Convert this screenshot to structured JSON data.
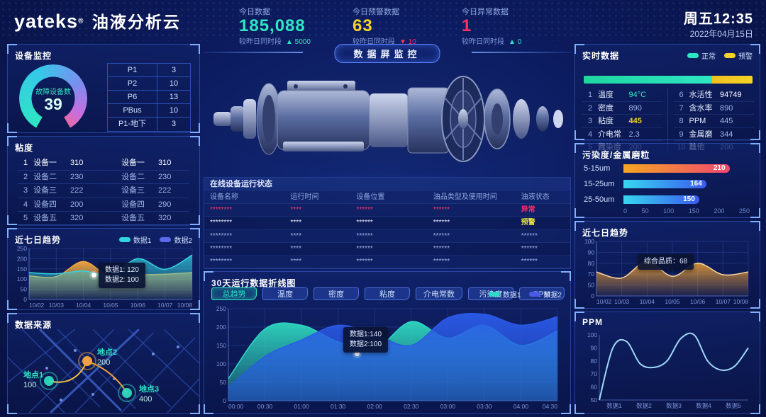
{
  "colors": {
    "teal": "#2EE6C3",
    "yellow": "#F5D324",
    "red": "#FF2E63",
    "cyan": "#35C9E8",
    "orange": "#F5A93C",
    "blue": "#2A5AE8"
  },
  "header": {
    "logo_en": "yateks",
    "logo_reg": "®",
    "logo_cn": "油液分析云",
    "stats": [
      {
        "label": "今日数据",
        "value": "185,088",
        "delta_label": "较昨日同时段",
        "delta": "▲ 5000"
      },
      {
        "label": "今日预警数据",
        "value": "63",
        "delta_label": "较昨日同时段",
        "delta": "▼ 10"
      },
      {
        "label": "今日异常数据",
        "value": "1",
        "delta_label": "较昨日同时段",
        "delta": "▲ 0"
      }
    ],
    "weekday_time": "周五12:35",
    "date": "2022年04月15日"
  },
  "device_monitor": {
    "title": "设备监控",
    "gauge_label": "故障设备数",
    "gauge_value": "39",
    "rows": [
      {
        "k": "P1",
        "v": "3"
      },
      {
        "k": "P2",
        "v": "10"
      },
      {
        "k": "P6",
        "v": "13"
      },
      {
        "k": "PBus",
        "v": "10"
      },
      {
        "k": "P1-地下",
        "v": "3"
      }
    ]
  },
  "viscosity": {
    "title": "粘度",
    "rows": [
      {
        "no": "1",
        "lname": "设备一",
        "lval": "310",
        "rname": "设备一",
        "rval": "310"
      },
      {
        "no": "2",
        "lname": "设备二",
        "lval": "230",
        "rname": "设备二",
        "rval": "230"
      },
      {
        "no": "3",
        "lname": "设备三",
        "lval": "222",
        "rname": "设备三",
        "rval": "222"
      },
      {
        "no": "4",
        "lname": "设备四",
        "lval": "200",
        "rname": "设备四",
        "rval": "290"
      },
      {
        "no": "5",
        "lname": "设备五",
        "lval": "320",
        "rname": "设备五",
        "rval": "320"
      }
    ]
  },
  "trend_left": {
    "title": "近七日趋势",
    "legend": [
      "数据1",
      "数据2"
    ],
    "tooltip_line1": "数据1: 120",
    "tooltip_line2": "数据2: 100"
  },
  "data_source": {
    "title": "数据来源",
    "points": [
      {
        "name": "地点1",
        "value": "100"
      },
      {
        "name": "地点2",
        "value": "200"
      },
      {
        "name": "地点3",
        "value": "400"
      }
    ]
  },
  "center": {
    "badge": "数据屏监控",
    "status_table": {
      "title": "在线设备运行状态",
      "headers": [
        "设备名称",
        "运行时间",
        "设备位置",
        "油品类型及使用时间",
        "油液状态"
      ],
      "rows": [
        {
          "c0": "********",
          "c1": "****",
          "c2": "******",
          "c3": "******",
          "status": "异常"
        },
        {
          "c0": "********",
          "c1": "****",
          "c2": "******",
          "c3": "******",
          "status": "预警"
        },
        {
          "c0": "********",
          "c1": "****",
          "c2": "******",
          "c3": "******",
          "status": "******"
        },
        {
          "c0": "********",
          "c1": "****",
          "c2": "******",
          "c3": "******",
          "status": "******"
        },
        {
          "c0": "********",
          "c1": "****",
          "c2": "******",
          "c3": "******",
          "status": "******"
        }
      ]
    },
    "line30": {
      "title": "30天运行数据折线图",
      "tabs": [
        "总趋势",
        "温度",
        "密度",
        "粘度",
        "介电常数",
        "污染度",
        "PPM"
      ],
      "legend": [
        "数据1",
        "数据2"
      ],
      "tooltip_line1": "数据1:140",
      "tooltip_line2": "数据2:100"
    }
  },
  "realtime": {
    "title": "实时数据",
    "legend": [
      {
        "label": "正常"
      },
      {
        "label": "预警"
      }
    ],
    "bar": {
      "normal_pct": 76,
      "warn_pct": 24
    },
    "items": [
      {
        "no": "1",
        "name": "温度",
        "value": "94°C"
      },
      {
        "no": "2",
        "name": "密度",
        "value": "890"
      },
      {
        "no": "3",
        "name": "粘度",
        "value": "445"
      },
      {
        "no": "4",
        "name": "介电常数",
        "value": "2.3"
      },
      {
        "no": "5",
        "name": "污染度",
        "value": "200"
      },
      {
        "no": "6",
        "name": "水活性",
        "value": "94749"
      },
      {
        "no": "7",
        "name": "含水率",
        "value": "890"
      },
      {
        "no": "8",
        "name": "PPM",
        "value": "445"
      },
      {
        "no": "9",
        "name": "金属磨粒",
        "value": "344"
      },
      {
        "no": "10",
        "name": "其他",
        "value": "200"
      }
    ]
  },
  "contamination": {
    "title": "污染度/金属磨粒",
    "max": 250,
    "bars": [
      {
        "label": "5-15um",
        "value": 210
      },
      {
        "label": "15-25um",
        "value": 164
      },
      {
        "label": "25-50um",
        "value": 150
      }
    ],
    "axis": [
      "0",
      "50",
      "100",
      "150",
      "200",
      "250"
    ]
  },
  "trend_right": {
    "title": "近七日趋势",
    "tooltip": "综合品质：68"
  },
  "ppm": {
    "title": "PPM"
  },
  "chart_data": {
    "trend_left": {
      "type": "area",
      "x": [
        "10/02",
        "10/03",
        "10/04",
        "10/05",
        "10/06",
        "10/07",
        "10/08"
      ],
      "ylim": [
        0,
        250
      ],
      "yticks": [
        0,
        50,
        100,
        150,
        200,
        250
      ],
      "grid": "both",
      "series": [
        {
          "name": "数据2",
          "color": "#f5a93c",
          "fill": [
            "rgba(245,169,60,0.95)",
            "rgba(245,169,60,0.04)"
          ],
          "values": [
            116,
            112,
            186,
            108,
            120,
            124,
            132
          ]
        },
        {
          "name": "数据1",
          "color": "#35d3e0",
          "fill": [
            "rgba(53,211,224,0.75)",
            "rgba(53,211,224,0.05)"
          ],
          "values": [
            132,
            126,
            140,
            120,
            200,
            148,
            218
          ]
        }
      ],
      "tooltip": {
        "数据1": 120,
        "数据2": 100
      }
    },
    "line30": {
      "type": "area",
      "x": [
        "00:00",
        "00:30",
        "01:00",
        "01:30",
        "02:00",
        "02:30",
        "03:00",
        "03:30",
        "04:00",
        "04:30"
      ],
      "ylim": [
        0,
        250
      ],
      "yticks": [
        0,
        50,
        100,
        150,
        200,
        250
      ],
      "grid": "both",
      "series": [
        {
          "name": "数据1",
          "color": "#2fd8c8",
          "fill": [
            "rgba(47,216,190,0.95)",
            "rgba(47,216,190,0.25)"
          ],
          "values": [
            60,
            195,
            205,
            160,
            140,
            215,
            170,
            205,
            150,
            190
          ]
        },
        {
          "name": "数据2",
          "color": "#2a5ae8",
          "fill": [
            "rgba(42,90,232,0.95)",
            "rgba(42,90,232,0.45)"
          ],
          "values": [
            35,
            120,
            165,
            205,
            180,
            150,
            225,
            235,
            205,
            228
          ]
        }
      ],
      "tooltip": {
        "数据1": 140,
        "数据2": 100
      }
    },
    "trend_right": {
      "type": "area",
      "x": [
        "10/02",
        "10/03",
        "10/04",
        "10/05",
        "10/06",
        "10/07",
        "10/08"
      ],
      "yscale": [
        [
          0,
          0
        ],
        [
          50,
          0.2
        ],
        [
          70,
          0.4
        ],
        [
          80,
          0.6
        ],
        [
          90,
          0.8
        ],
        [
          100,
          1
        ]
      ],
      "yticks": [
        0,
        50,
        70,
        80,
        90,
        100
      ],
      "grid": "both",
      "series": [
        {
          "name": "综合品质",
          "color": "#ffd9a0",
          "fill": [
            "rgba(240,160,50,0.9)",
            "rgba(240,160,50,0.06)"
          ],
          "values": [
            72,
            63,
            82,
            66,
            80,
            69,
            72
          ]
        }
      ],
      "tooltip": {
        "综合品质": 68
      }
    },
    "ppm": {
      "type": "line",
      "xlabels_even": [
        "数据1",
        "数据2",
        "数据3",
        "数据4",
        "数据5"
      ],
      "ylim": [
        50,
        100
      ],
      "yticks": [
        50,
        60,
        70,
        80,
        90,
        100
      ],
      "grid": "none",
      "series": [
        {
          "name": "PPM",
          "color": "#9fd8f8",
          "lw": 2,
          "values": [
            50,
            90,
            95,
            78,
            75,
            80,
            97,
            100,
            80,
            73,
            76,
            90
          ]
        }
      ]
    },
    "contamination": {
      "type": "bar",
      "categories": [
        "5-15um",
        "15-25um",
        "25-50um"
      ],
      "values": [
        210,
        164,
        150
      ],
      "xlim": [
        0,
        250
      ]
    }
  }
}
